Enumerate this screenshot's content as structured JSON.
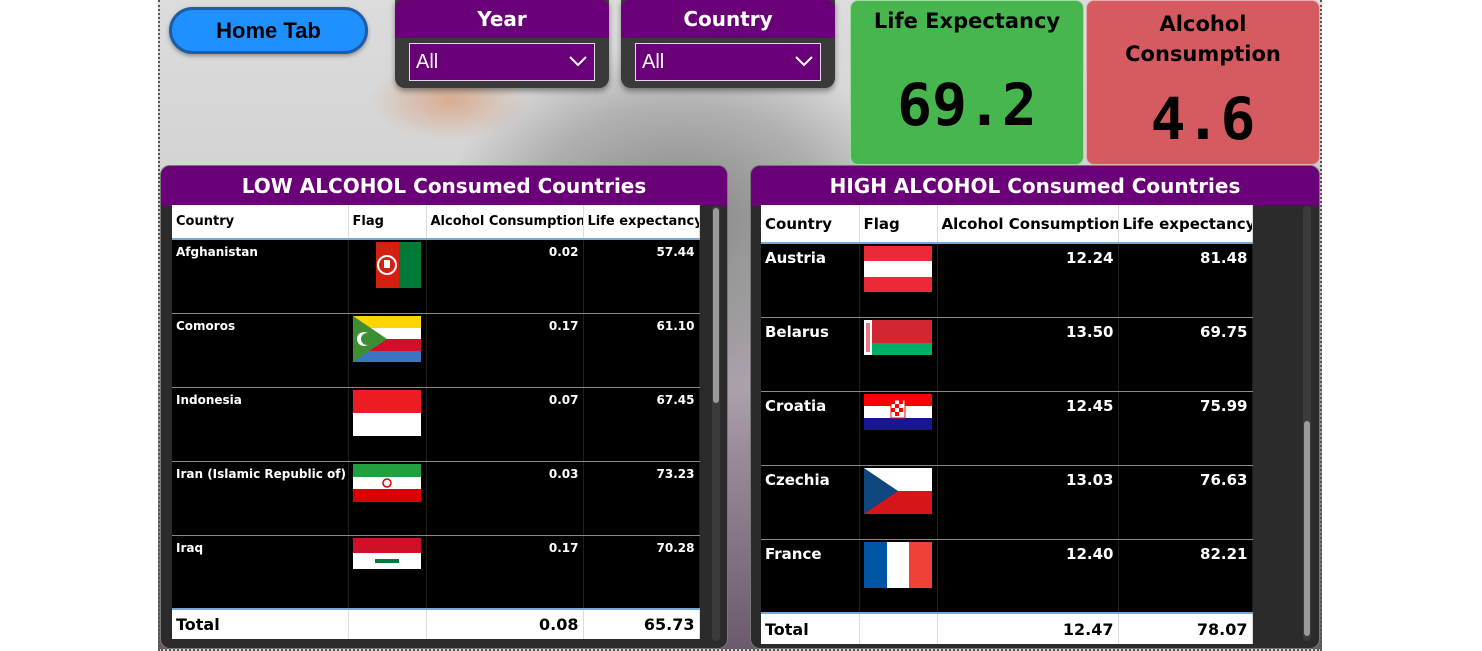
{
  "home_button": {
    "label": "Home Tab"
  },
  "slicers": [
    {
      "title": "Year",
      "selected": "All"
    },
    {
      "title": "Country",
      "selected": "All"
    }
  ],
  "kpis": [
    {
      "title": "Life Expectancy",
      "value": "69.2",
      "color": "#47b64f"
    },
    {
      "title": "Alcohol Consumption",
      "value": "4.6",
      "color": "#d55b60"
    }
  ],
  "low_table": {
    "title": "LOW ALCOHOL Consumed Countries",
    "columns": [
      "Country",
      "Flag",
      "Alcohol Consumption",
      "Life expectancy"
    ],
    "rows": [
      {
        "country": "Afghanistan",
        "flag": "afghanistan-flag-icon",
        "alcohol": "0.02",
        "life": "57.44"
      },
      {
        "country": "Comoros",
        "flag": "comoros-flag-icon",
        "alcohol": "0.17",
        "life": "61.10"
      },
      {
        "country": "Indonesia",
        "flag": "indonesia-flag-icon",
        "alcohol": "0.07",
        "life": "67.45"
      },
      {
        "country": "Iran (Islamic Republic of)",
        "flag": "iran-flag-icon",
        "alcohol": "0.03",
        "life": "73.23"
      },
      {
        "country": "Iraq",
        "flag": "iraq-flag-icon",
        "alcohol": "0.17",
        "life": "70.28"
      }
    ],
    "total": {
      "label": "Total",
      "alcohol": "0.08",
      "life": "65.73"
    }
  },
  "high_table": {
    "title": "HIGH ALCOHOL Consumed Countries",
    "columns": [
      "Country",
      "Flag",
      "Alcohol Consumption",
      "Life expectancy"
    ],
    "rows": [
      {
        "country": "Austria",
        "flag": "austria-flag-icon",
        "alcohol": "12.24",
        "life": "81.48"
      },
      {
        "country": "Belarus",
        "flag": "belarus-flag-icon",
        "alcohol": "13.50",
        "life": "69.75"
      },
      {
        "country": "Croatia",
        "flag": "croatia-flag-icon",
        "alcohol": "12.45",
        "life": "75.99"
      },
      {
        "country": "Czechia",
        "flag": "czechia-flag-icon",
        "alcohol": "13.03",
        "life": "76.63"
      },
      {
        "country": "France",
        "flag": "france-flag-icon",
        "alcohol": "12.40",
        "life": "82.21"
      }
    ],
    "total": {
      "label": "Total",
      "alcohol": "12.47",
      "life": "78.07"
    }
  }
}
